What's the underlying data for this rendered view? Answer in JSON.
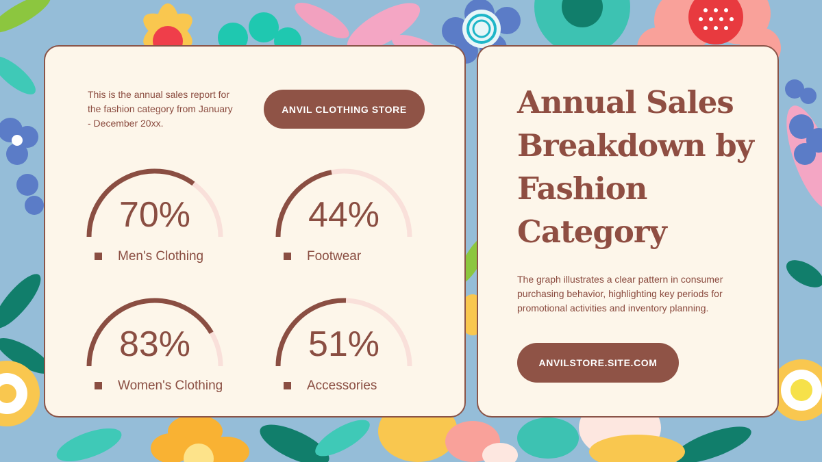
{
  "intro_text": "This is the annual sales report for the fashion category from January - December 20xx.",
  "store_button": "ANVIL CLOTHING STORE",
  "title": "Annual Sales Breakdown by Fashion Category",
  "description": "The graph illustrates a clear pattern in consumer purchasing behavior, highlighting key periods for promotional activities and inventory planning.",
  "site_button": "ANVILSTORE.SITE.COM",
  "colors": {
    "accent": "#8f5346",
    "track": "#f9e0da",
    "card": "#fdf6ea",
    "background": "#95bdd8"
  },
  "chart_data": {
    "type": "gauge",
    "items": [
      {
        "label": "Men's Clothing",
        "value": 70,
        "display": "70%"
      },
      {
        "label": "Footwear",
        "value": 44,
        "display": "44%"
      },
      {
        "label": "Women's Clothing",
        "value": 83,
        "display": "83%"
      },
      {
        "label": "Accessories",
        "value": 51,
        "display": "51%"
      }
    ]
  }
}
